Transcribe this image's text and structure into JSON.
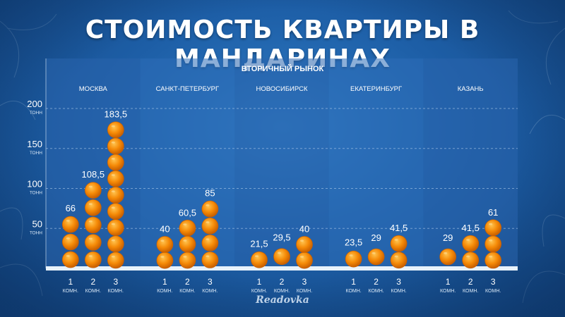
{
  "title": "СТОИМОСТЬ КВАРТИРЫ В МАНДАРИНАХ",
  "logo": "Readovka",
  "chart_data": {
    "type": "bar",
    "title": "СТОИМОСТЬ КВАРТИРЫ В МАНДАРИНАХ",
    "subtitle": "ВТОРИЧНЫЙ РЫНОК",
    "ylabel": "",
    "y_unit": "ТОНН",
    "ylim": [
      0,
      200
    ],
    "yticks": [
      50,
      100,
      150,
      200
    ],
    "category_labels": [
      [
        "1",
        "КОМН."
      ],
      [
        "2",
        "КОМН."
      ],
      [
        "3",
        "КОМН."
      ]
    ],
    "groups": [
      {
        "name": "МОСКВА",
        "values": [
          66,
          108.5,
          183.5
        ],
        "labels": [
          "66",
          "108,5",
          "183,5"
        ]
      },
      {
        "name": "САНКТ-ПЕТЕРБУРГ",
        "values": [
          40,
          60.5,
          85
        ],
        "labels": [
          "40",
          "60,5",
          "85"
        ]
      },
      {
        "name": "НОВОСИБИРСК",
        "values": [
          21.5,
          29.5,
          40
        ],
        "labels": [
          "21,5",
          "29,5",
          "40"
        ]
      },
      {
        "name": "ЕКАТЕРИНБУРГ",
        "values": [
          23.5,
          29,
          41.5
        ],
        "labels": [
          "23,5",
          "29",
          "41,5"
        ]
      },
      {
        "name": "КАЗАНЬ",
        "values": [
          29,
          41.5,
          61
        ],
        "labels": [
          "29",
          "41,5",
          "61"
        ]
      }
    ],
    "grid": true,
    "colors": {
      "orange": "#f58a07",
      "orange_light": "#ffb43a",
      "orange_dark": "#c85f00",
      "panel": "#2a64ad",
      "panel_alt": "#2e6db8",
      "text": "#ffffff",
      "label": "#d9e8f7"
    }
  }
}
